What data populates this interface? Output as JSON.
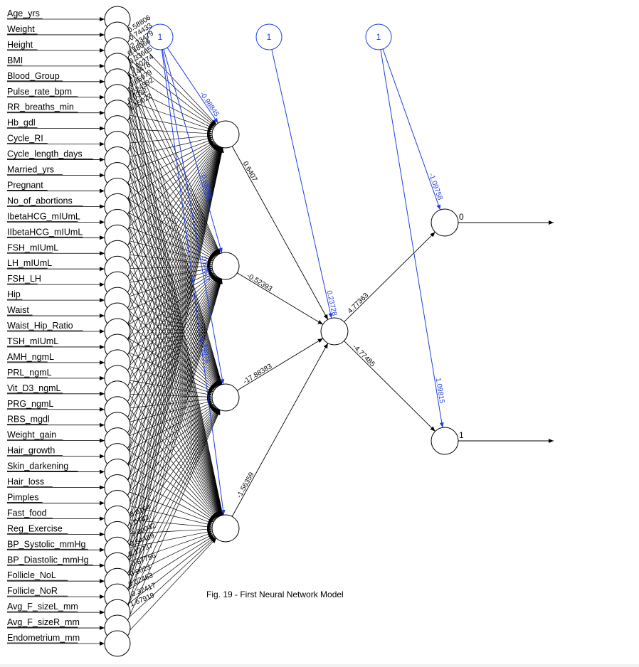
{
  "caption": "Fig. 19 - First Neural Network Model",
  "input_labels": [
    "Age_yrs",
    "Weight",
    "Height",
    "BMI",
    "Blood_Group",
    "Pulse_rate_bpm",
    "RR_breaths_min",
    "Hb_gdl",
    "Cycle_RI",
    "Cycle_length_days",
    "Married_yrs",
    "Pregnant",
    "No_of_abortions",
    "IbetaHCG_mIUmL",
    "IIbetaHCG_mIUmL",
    "FSH_mIUmL",
    "LH_mIUmL",
    "FSH_LH",
    "Hip",
    "Waist",
    "Waist_Hip_Ratio",
    "TSH_mIUmL",
    "AMH_ngmL",
    "PRL_ngmL",
    "Vit_D3_ngmL",
    "PRG_ngmL",
    "RBS_mgdl",
    "Weight_gain",
    "Hair_growth",
    "Skin_darkening",
    "Hair_loss",
    "Pimples",
    "Fast_food",
    "Reg_Exercise",
    "BP_Systolic_mmHg",
    "BP_Diastolic_mmHg",
    "Follicle_NoL",
    "Follicle_NoR",
    "Avg_F_sizeL_mm",
    "Avg_F_sizeR_mm",
    "Endometrium_mm"
  ],
  "input_weight_labels_top": [
    "0.58806",
    "0.74433",
    "2.23479",
    "0.48066",
    "0.33665",
    "0.00274",
    "1.14478",
    "0.85979",
    "1.24592",
    "0.0332",
    "1.15022"
  ],
  "input_weight_labels_bottom": [
    "3.0164",
    "1.0742",
    "0.00042",
    "0.54489",
    "0.12737",
    "0.87756",
    "0.0023",
    "0.02463",
    "0.32417",
    "1.67919"
  ],
  "bias_nodes": [
    "1",
    "1",
    "1"
  ],
  "bias_weights_hidden1": [
    "-0.98845",
    "0.68806",
    "0.84621",
    "1.34076"
  ],
  "hidden1_to_hidden2_weights": [
    "0.6407",
    "-0.52393",
    "-17.88383",
    "-1.56359"
  ],
  "bias_weight_hidden2": "0.23728",
  "hidden2_to_output_weights": [
    "4.77363",
    "-4.77485"
  ],
  "bias_weights_output": [
    "-1.09758",
    "1.09815"
  ],
  "output_labels": [
    "0",
    "1"
  ],
  "colors": {
    "edge": "#000000",
    "bias": "#1f3fe0"
  }
}
